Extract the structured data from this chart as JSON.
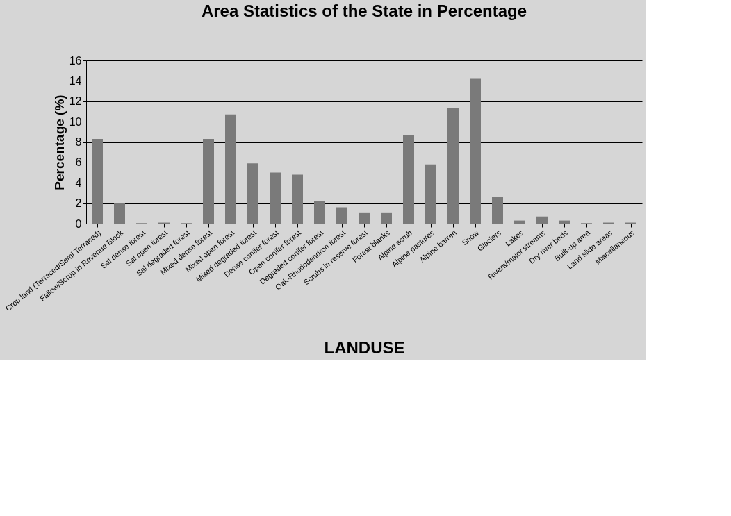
{
  "chart_data": {
    "type": "bar",
    "title": "Area Statistics of the State in Percentage",
    "xlabel": "LANDUSE",
    "ylabel": "Percentage (%)",
    "categories": [
      "Crop land (Terraced/Semi Terraced)",
      "Fallow/Scrup in Revenue Block",
      "Sal dense forest",
      "Sal open forest",
      "Sal degraded forest",
      "Mixed dense forest",
      "Mixed open forest",
      "Mixed degraded forest",
      "Dense conifer forest",
      "Open conifer forest",
      "Degraded conifer forest",
      "Oak-Rhododendron forest",
      "Scrubs in reserve forest",
      "Forest blanks",
      "Alpine scrub",
      "Alpine pastures",
      "Alpine barren",
      "Snow",
      "Glaciers",
      "Lakes",
      "Rivers/major streams",
      "Dry river beds",
      "Built-up area",
      "Land slide areas",
      "Miscellaneous"
    ],
    "values": [
      8.3,
      2.0,
      0.05,
      0.1,
      0.05,
      8.3,
      10.7,
      5.9,
      5.0,
      4.8,
      2.2,
      1.6,
      1.1,
      1.1,
      8.7,
      5.8,
      11.3,
      14.2,
      2.6,
      0.3,
      0.7,
      0.3,
      0.05,
      0.1,
      0.1
    ],
    "color": "#7a7a7a",
    "ylim": [
      0,
      16
    ],
    "yticks": [
      0,
      2,
      4,
      6,
      8,
      10,
      12,
      14,
      16
    ],
    "grid": "y"
  }
}
